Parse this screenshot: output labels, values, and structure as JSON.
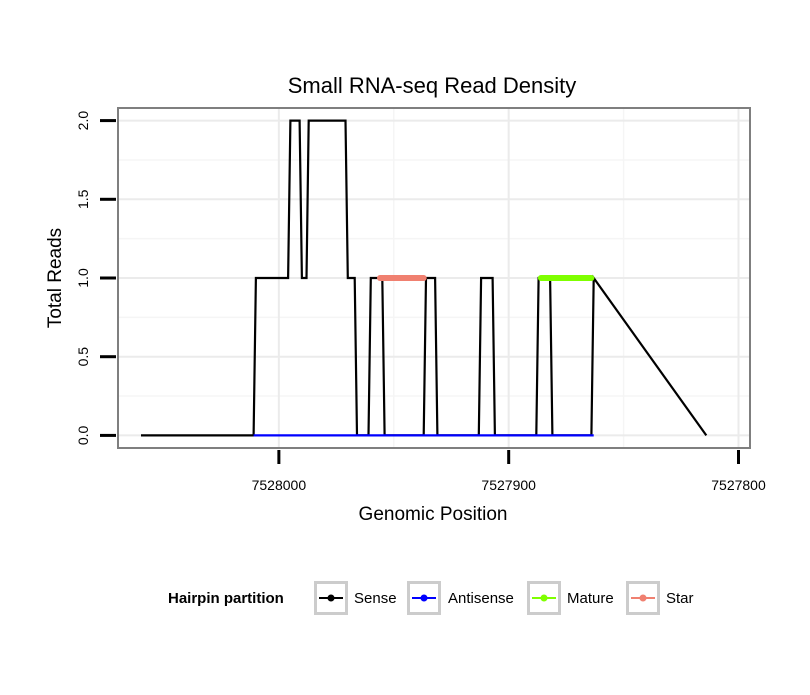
{
  "chart_data": {
    "type": "line",
    "title": "Small RNA-seq Read Density",
    "xlabel": "Genomic Position",
    "ylabel": "Total Reads",
    "x_reversed": true,
    "xlim": [
      7528070,
      7527795
    ],
    "ylim": [
      -0.08,
      2.08
    ],
    "x_ticks": [
      7528000,
      7527900,
      7527800
    ],
    "y_ticks": [
      0.0,
      0.5,
      1.0,
      1.5,
      2.0
    ],
    "x_tick_labels": [
      "7528000",
      "7527900",
      "7527800"
    ],
    "y_tick_labels": [
      "0.0",
      "0.5",
      "1.0",
      "1.5",
      "2.0"
    ],
    "grid": true,
    "legend_title": "Hairpin partition",
    "legend_position": "bottom",
    "series": [
      {
        "name": "Sense",
        "color": "#000000",
        "x": [
          7528060,
          7528011,
          7528010,
          7527996,
          7527995,
          7527991,
          7527990,
          7527988,
          7527987,
          7527983,
          7527982,
          7527971,
          7527970,
          7527967,
          7527966,
          7527961,
          7527960,
          7527955,
          7527954,
          7527937,
          7527936,
          7527932,
          7527931,
          7527913,
          7527912,
          7527907,
          7527906,
          7527888,
          7527887,
          7527882,
          7527881,
          7527864,
          7527863,
          7527814
        ],
        "y": [
          0,
          0,
          1,
          1,
          2,
          2,
          1,
          1,
          2,
          2,
          2,
          2,
          1,
          1,
          0,
          0,
          1,
          1,
          0,
          0,
          1,
          1,
          0,
          0,
          1,
          1,
          0,
          0,
          1,
          1,
          0,
          0,
          1,
          0
        ]
      },
      {
        "name": "Antisense",
        "color": "#0000ff",
        "x": [
          7528011,
          7527863
        ],
        "y": [
          0,
          0
        ]
      },
      {
        "name": "Mature",
        "color": "#7fff00",
        "x": [
          7527886,
          7527864
        ],
        "y": [
          1,
          1
        ]
      },
      {
        "name": "Star",
        "color": "#f08070",
        "x": [
          7527956,
          7527937
        ],
        "y": [
          1,
          1
        ]
      }
    ]
  }
}
